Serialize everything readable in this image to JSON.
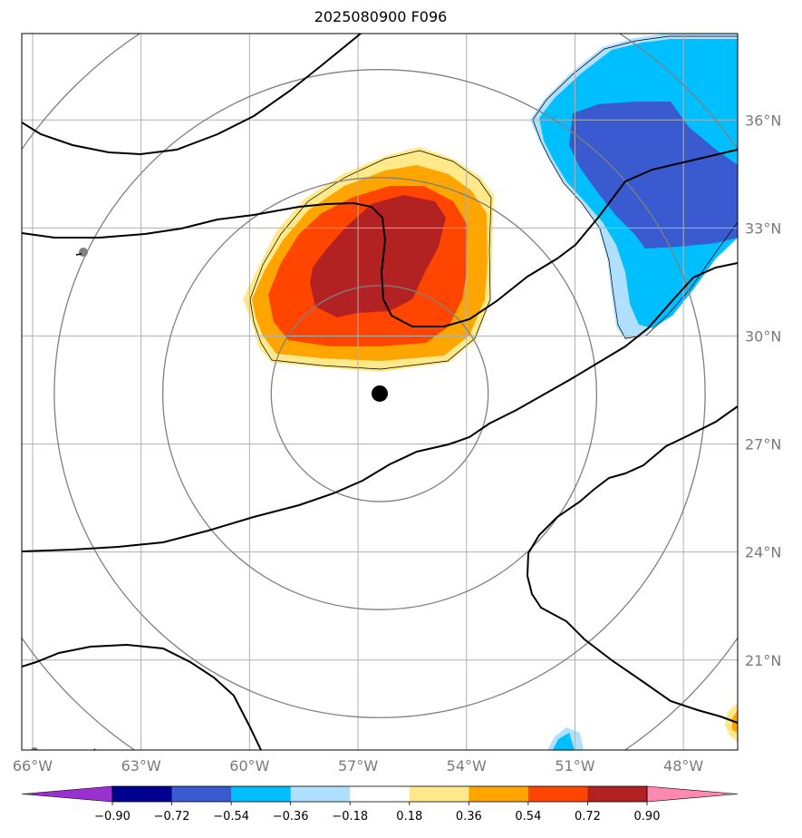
{
  "title": "2025080900 F096",
  "map": {
    "lon_range": [
      -66.3,
      -46.5
    ],
    "lat_range": [
      18.5,
      38.4
    ],
    "lon_ticks": [
      {
        "value": -66,
        "label": "66°W"
      },
      {
        "value": -63,
        "label": "63°W"
      },
      {
        "value": -60,
        "label": "60°W"
      },
      {
        "value": -57,
        "label": "57°W"
      },
      {
        "value": -54,
        "label": "54°W"
      },
      {
        "value": -51,
        "label": "51°W"
      },
      {
        "value": -48,
        "label": "48°W"
      }
    ],
    "lat_ticks": [
      {
        "value": 36,
        "label": "36°N"
      },
      {
        "value": 33,
        "label": "33°N"
      },
      {
        "value": 30,
        "label": "30°N"
      },
      {
        "value": 27,
        "label": "27°N"
      },
      {
        "value": 24,
        "label": "24°N"
      },
      {
        "value": 21,
        "label": "21°N"
      }
    ],
    "center": {
      "lon": -56.4,
      "lat": 28.4
    },
    "range_rings_deg": [
      3,
      6,
      9,
      12
    ],
    "colors": {
      "grid": "#b0b0b0",
      "ring": "#808080",
      "contour": "#000000",
      "center_marker": "#000000",
      "label": "#7a7a7a"
    }
  },
  "colorbar": {
    "levels": [
      "−0.90",
      "−0.72",
      "−0.54",
      "−0.36",
      "−0.18",
      "0.18",
      "0.36",
      "0.54",
      "0.72",
      "0.90"
    ],
    "colors": [
      "#9b30d0",
      "#000090",
      "#3a5bcf",
      "#00bfff",
      "#b0e0ff",
      "#ffffff",
      "#ffe98a",
      "#ffa500",
      "#ff4500",
      "#b22222",
      "#ff88b0"
    ]
  }
}
